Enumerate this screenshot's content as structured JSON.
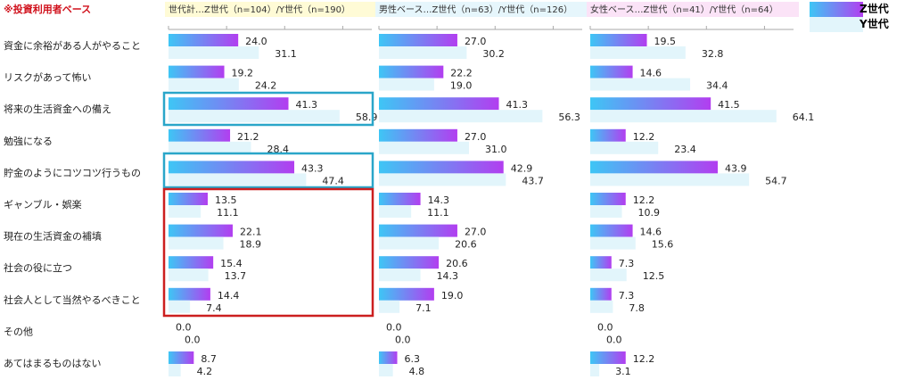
{
  "note": "※投資利用者ベース",
  "legend": {
    "z_label": "Z世代",
    "y_label": "Y世代"
  },
  "colors": {
    "z_start": "#3ec6f5",
    "z_end": "#b23ef0",
    "y": "#e2f5fb",
    "note": "#d0101b",
    "box_blue": "#2aa6c9",
    "box_red": "#cc1f1f",
    "panel1_bg": "#fffbd6",
    "panel2_bg": "#e6f6fc",
    "panel3_bg": "#fbe3f7"
  },
  "chart_data": {
    "type": "bar",
    "orientation": "horizontal",
    "xlim": [
      0,
      70
    ],
    "categories": [
      "資金に余裕がある人がやること",
      "リスクがあって怖い",
      "将来の生活資金への備え",
      "勉強になる",
      "貯金のようにコツコツ行うもの",
      "ギャンブル・娯楽",
      "現在の生活資金の補填",
      "社会の役に立つ",
      "社会人として当然やるべきこと",
      "その他",
      "あてはまるものはない"
    ],
    "panels": [
      {
        "title": "世代計…Z世代（n=104）/Y世代（n=190）",
        "series": [
          {
            "name": "Z世代",
            "values": [
              24.0,
              19.2,
              41.3,
              21.2,
              43.3,
              13.5,
              22.1,
              15.4,
              14.4,
              0.0,
              8.7
            ]
          },
          {
            "name": "Y世代",
            "values": [
              31.1,
              24.2,
              58.9,
              28.4,
              47.4,
              11.1,
              18.9,
              13.7,
              7.4,
              0.0,
              4.2
            ]
          }
        ]
      },
      {
        "title": "男性ベース…Z世代（n=63）/Y世代（n=126）",
        "series": [
          {
            "name": "Z世代",
            "values": [
              27.0,
              22.2,
              41.3,
              27.0,
              42.9,
              14.3,
              27.0,
              20.6,
              19.0,
              0.0,
              6.3
            ]
          },
          {
            "name": "Y世代",
            "values": [
              30.2,
              19.0,
              56.3,
              31.0,
              43.7,
              11.1,
              20.6,
              14.3,
              7.1,
              0.0,
              4.8
            ]
          }
        ]
      },
      {
        "title": "女性ベース…Z世代（n=41）/Y世代（n=64）",
        "series": [
          {
            "name": "Z世代",
            "values": [
              19.5,
              14.6,
              41.5,
              12.2,
              43.9,
              12.2,
              14.6,
              7.3,
              7.3,
              0.0,
              12.2
            ]
          },
          {
            "name": "Y世代",
            "values": [
              32.8,
              34.4,
              64.1,
              23.4,
              54.7,
              10.9,
              15.6,
              12.5,
              7.8,
              0.0,
              3.1
            ]
          }
        ]
      }
    ]
  }
}
